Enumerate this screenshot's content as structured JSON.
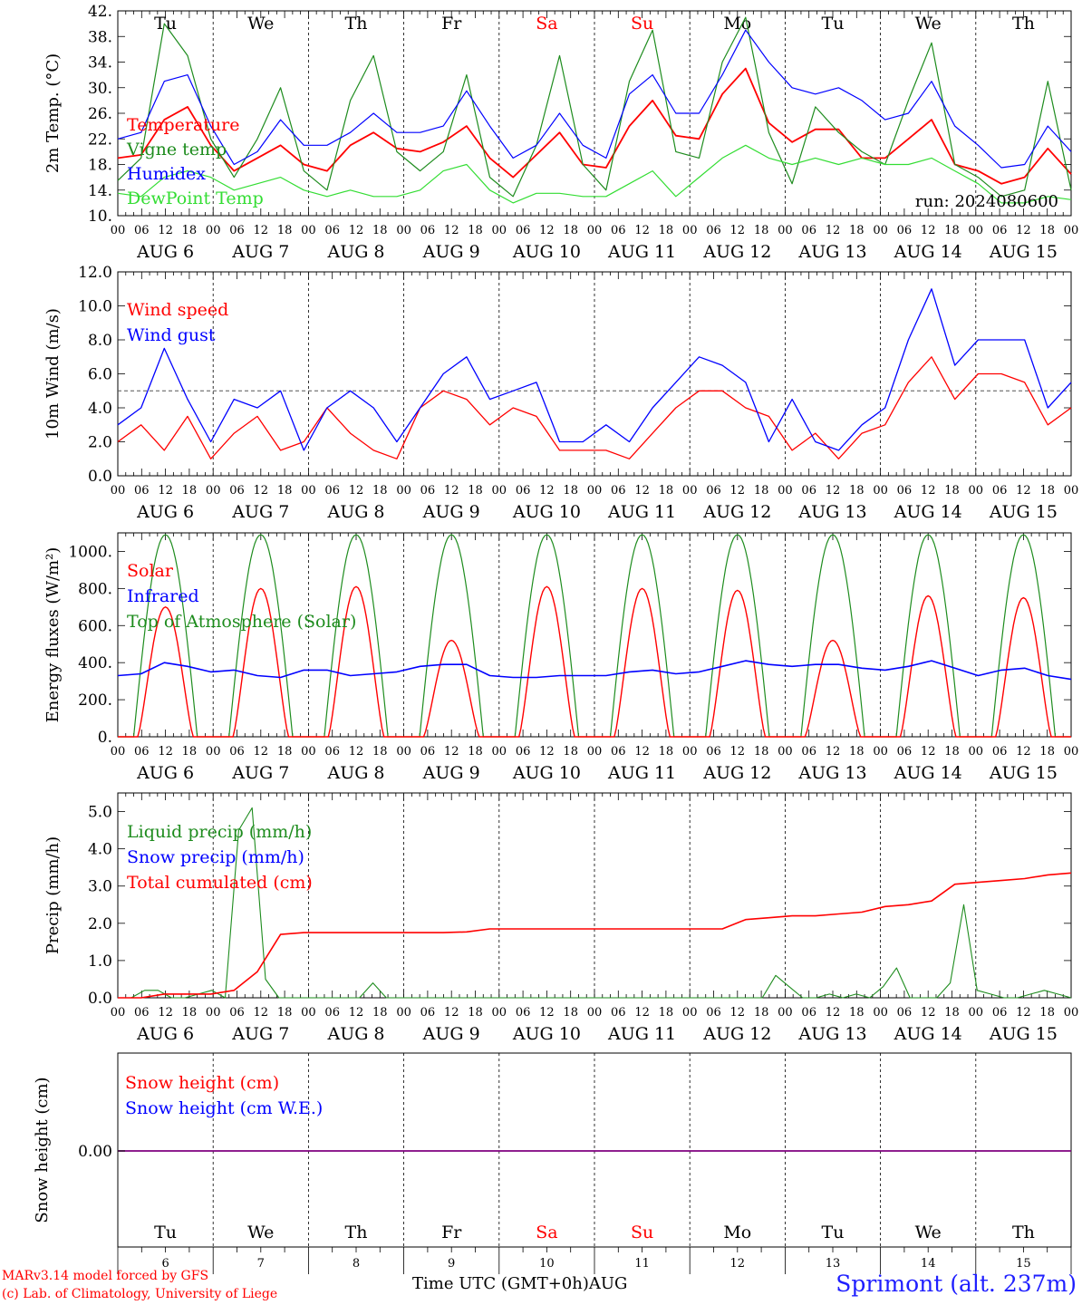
{
  "colors": {
    "red": "#ff0000",
    "green": "#1e8c1e",
    "blue": "#0000ff",
    "lightgreen": "#33dd33",
    "purple": "#7f007f",
    "weekend": "#ff0000"
  },
  "footer": {
    "credit_line1": "MARv3.14 model forced by GFS",
    "credit_line2": "(c) Lab. of Climatology, University of Liege",
    "time_label": "Time UTC (GMT+0h)",
    "month_label": "AUG",
    "station": "Sprimont (alt. 237m)"
  },
  "run_label": "run: 2024080600",
  "chart_data": [
    {
      "type": "line",
      "id": "temp",
      "ylabel": "2m Temp. (°C)",
      "ylim": [
        10,
        42
      ],
      "yticks": [
        "10.",
        "14.",
        "18.",
        "22.",
        "26.",
        "30.",
        "34.",
        "38.",
        "42."
      ],
      "x_hours_step": 6,
      "weekdays": [
        "Tu",
        "We",
        "Th",
        "Fr",
        "Sa",
        "Su",
        "Mo",
        "Tu",
        "We",
        "Th"
      ],
      "weekend_days": [
        "Sa",
        "Su"
      ],
      "hour_ticks": [
        "00",
        "06",
        "12",
        "18"
      ],
      "date_labels": [
        "AUG  6",
        "AUG  7",
        "AUG  8",
        "AUG  9",
        "AUG 10",
        "AUG 11",
        "AUG 12",
        "AUG 13",
        "AUG 14",
        "AUG 15"
      ],
      "series": [
        {
          "name": "Temperature",
          "color": "red",
          "values": [
            19,
            19.5,
            25,
            27,
            21,
            17,
            19,
            21,
            18,
            17,
            21,
            23,
            20.5,
            20,
            21.5,
            24,
            19,
            16,
            19.5,
            23,
            18,
            17.5,
            24,
            28,
            22.5,
            22,
            29,
            33,
            24.5,
            21.5,
            23.5,
            23.5,
            19,
            19,
            22,
            25,
            18,
            17,
            15,
            16,
            20.5,
            16.5
          ]
        },
        {
          "name": "Vigne temp",
          "color": "green",
          "values": [
            15.5,
            19,
            40,
            35,
            22,
            16,
            22,
            30,
            17,
            14,
            28,
            35,
            20,
            17,
            20,
            32,
            16,
            13,
            21,
            35,
            18,
            14,
            31,
            39,
            20,
            19,
            34,
            41,
            23,
            15,
            27,
            23,
            20,
            18,
            28,
            37,
            18,
            16,
            13,
            14,
            31,
            14
          ]
        },
        {
          "name": "Humidex",
          "color": "blue",
          "values": [
            22,
            23,
            31,
            32,
            24,
            18,
            20,
            25,
            21,
            21,
            23,
            26,
            23,
            23,
            24,
            29.5,
            24,
            19,
            21,
            26,
            21,
            19,
            29,
            32,
            26,
            26,
            32,
            39,
            34,
            30,
            29,
            30,
            28,
            25,
            26,
            31,
            24,
            21,
            17.5,
            18,
            24,
            20
          ]
        },
        {
          "name": "DewPoint Temp",
          "color": "lightgreen",
          "values": [
            13.5,
            13,
            16,
            17,
            16,
            14,
            15,
            16,
            14,
            13,
            14,
            13,
            13,
            14,
            17,
            18,
            14,
            12,
            13.5,
            13.5,
            13,
            13,
            15,
            17,
            13,
            16,
            19,
            21,
            19,
            18,
            19,
            18,
            19,
            18,
            18,
            19,
            17,
            15,
            12,
            12,
            13,
            12.5
          ]
        }
      ]
    },
    {
      "type": "line",
      "id": "wind",
      "ylabel": "10m Wind (m/s)",
      "ylim": [
        0,
        12
      ],
      "yticks": [
        "0.0",
        "2.0",
        "4.0",
        "6.0",
        "8.0",
        "10.0",
        "12.0"
      ],
      "reference_line": 5,
      "date_labels": [
        "AUG  6",
        "AUG  7",
        "AUG  8",
        "AUG  9",
        "AUG 10",
        "AUG 11",
        "AUG 12",
        "AUG 13",
        "AUG 14",
        "AUG 15"
      ],
      "series": [
        {
          "name": "Wind speed",
          "color": "red",
          "values": [
            2,
            3,
            1.5,
            3.5,
            1,
            2.5,
            3.5,
            1.5,
            2,
            4,
            2.5,
            1.5,
            1,
            4,
            5,
            4.5,
            3,
            4,
            3.5,
            1.5,
            1.5,
            1.5,
            1,
            2.5,
            4,
            5,
            5,
            4,
            3.5,
            1.5,
            2.5,
            1,
            2.5,
            3,
            5.5,
            7,
            4.5,
            6,
            6,
            5.5,
            3,
            4
          ]
        },
        {
          "name": "Wind gust",
          "color": "blue",
          "values": [
            3,
            4,
            7.5,
            4.5,
            2,
            4.5,
            4,
            5,
            1.5,
            4,
            5,
            4,
            2,
            4,
            6,
            7,
            4.5,
            5,
            5.5,
            2,
            2,
            3,
            2,
            4,
            5.5,
            7,
            6.5,
            5.5,
            2,
            4.5,
            2,
            1.5,
            3,
            4,
            8,
            11,
            6.5,
            8,
            8,
            8,
            4,
            5.5
          ]
        }
      ]
    },
    {
      "type": "line",
      "id": "flux",
      "ylabel": "Energy fluxes (W/m²)",
      "ylim": [
        0,
        1100
      ],
      "yticks": [
        "0.",
        "200.",
        "400.",
        "600.",
        "800.",
        "1000."
      ],
      "date_labels": [
        "AUG  6",
        "AUG  7",
        "AUG  8",
        "AUG  9",
        "AUG 10",
        "AUG 11",
        "AUG 12",
        "AUG 13",
        "AUG 14",
        "AUG 15"
      ],
      "series": [
        {
          "name": "Solar",
          "color": "red",
          "values_peaks": [
            700,
            800,
            810,
            520,
            810,
            800,
            790,
            520,
            760,
            750
          ]
        },
        {
          "name": "Infrared",
          "color": "blue",
          "values": [
            330,
            340,
            400,
            380,
            350,
            360,
            330,
            320,
            360,
            360,
            330,
            340,
            350,
            380,
            390,
            390,
            330,
            320,
            320,
            330,
            330,
            330,
            350,
            360,
            340,
            350,
            380,
            410,
            390,
            380,
            390,
            390,
            370,
            360,
            380,
            410,
            370,
            330,
            360,
            370,
            330,
            310
          ]
        },
        {
          "name": "Top of Atmosphere (Solar)",
          "color": "green",
          "peak": 1090
        }
      ]
    },
    {
      "type": "line",
      "id": "precip",
      "ylabel": "Precip (mm/h)",
      "ylim": [
        0,
        5.5
      ],
      "yticks": [
        "0.0",
        "1.0",
        "2.0",
        "3.0",
        "4.0",
        "5.0"
      ],
      "date_labels": [
        "AUG  6",
        "AUG  7",
        "AUG  8",
        "AUG  9",
        "AUG 10",
        "AUG 11",
        "AUG 12",
        "AUG 13",
        "AUG 14",
        "AUG 15"
      ],
      "series": [
        {
          "name": "Liquid precip (mm/h)",
          "color": "green",
          "values": [
            0,
            0,
            0.2,
            0.2,
            0,
            0,
            0.1,
            0.2,
            0,
            4.5,
            5.1,
            0.5,
            0,
            0,
            0,
            0,
            0,
            0,
            0,
            0.4,
            0,
            0,
            0,
            0,
            0,
            0,
            0,
            0,
            0,
            0,
            0,
            0,
            0,
            0,
            0,
            0,
            0,
            0,
            0,
            0,
            0,
            0,
            0,
            0,
            0,
            0,
            0,
            0,
            0,
            0.6,
            0.3,
            0,
            0,
            0.1,
            0,
            0.1,
            0,
            0.3,
            0.8,
            0,
            0,
            0,
            0.4,
            2.5,
            0.2,
            0.1,
            0,
            0,
            0.1,
            0.2,
            0.1,
            0
          ]
        },
        {
          "name": "Snow precip (mm/h)",
          "color": "blue",
          "values": []
        },
        {
          "name": "Total cumulated (cm)",
          "color": "red",
          "values": [
            0,
            0,
            0.1,
            0.1,
            0.1,
            0.2,
            0.7,
            1.7,
            1.75,
            1.75,
            1.75,
            1.75,
            1.75,
            1.75,
            1.75,
            1.77,
            1.85,
            1.85,
            1.85,
            1.85,
            1.85,
            1.85,
            1.85,
            1.85,
            1.85,
            1.85,
            1.85,
            2.1,
            2.15,
            2.2,
            2.2,
            2.25,
            2.3,
            2.45,
            2.5,
            2.6,
            3.05,
            3.1,
            3.15,
            3.2,
            3.3,
            3.35
          ]
        }
      ]
    },
    {
      "type": "line",
      "id": "snow",
      "ylabel": "Snow height (cm)",
      "ytick": "0.00",
      "series": [
        {
          "name": "Snow height (cm)",
          "color": "red",
          "values": [
            0
          ]
        },
        {
          "name": "Snow height (cm W.E.)",
          "color": "blue",
          "values": [
            0
          ]
        }
      ],
      "bottom_day_numbers": [
        "6",
        "7",
        "8",
        "9",
        "10",
        "11",
        "12",
        "13",
        "14",
        "15"
      ]
    }
  ]
}
